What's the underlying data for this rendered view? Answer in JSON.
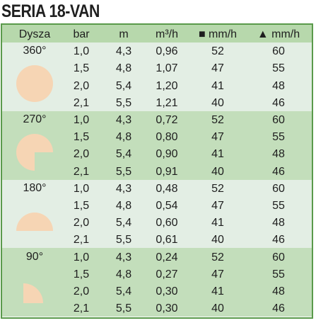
{
  "header": {
    "title": "SERIA 18-VAN"
  },
  "table": {
    "columns": [
      "Dysza",
      "bar",
      "m",
      "m³/h",
      "■ mm/h",
      "▲ mm/h"
    ],
    "groups": [
      {
        "nozzle": "360°",
        "rows": [
          [
            "1,0",
            "4,3",
            "0,96",
            "52",
            "60"
          ],
          [
            "1,5",
            "4,8",
            "1,07",
            "47",
            "55"
          ],
          [
            "2,0",
            "5,4",
            "1,20",
            "41",
            "48"
          ],
          [
            "2,1",
            "5,5",
            "1,21",
            "40",
            "46"
          ]
        ]
      },
      {
        "nozzle": "270°",
        "rows": [
          [
            "1,0",
            "4,3",
            "0,72",
            "52",
            "60"
          ],
          [
            "1,5",
            "4,8",
            "0,80",
            "47",
            "55"
          ],
          [
            "2,0",
            "5,4",
            "0,90",
            "41",
            "48"
          ],
          [
            "2,1",
            "5,5",
            "0,91",
            "40",
            "46"
          ]
        ]
      },
      {
        "nozzle": "180°",
        "rows": [
          [
            "1,0",
            "4,3",
            "0,48",
            "52",
            "60"
          ],
          [
            "1,5",
            "4,8",
            "0,54",
            "47",
            "55"
          ],
          [
            "2,0",
            "5,4",
            "0,60",
            "41",
            "48"
          ],
          [
            "2,1",
            "5,5",
            "0,61",
            "40",
            "46"
          ]
        ]
      },
      {
        "nozzle": "90°",
        "rows": [
          [
            "1,0",
            "4,3",
            "0,24",
            "52",
            "60"
          ],
          [
            "1,5",
            "4,8",
            "0,27",
            "47",
            "55"
          ],
          [
            "2,0",
            "5,4",
            "0,30",
            "41",
            "48"
          ],
          [
            "2,1",
            "5,5",
            "0,30",
            "40",
            "46"
          ]
        ]
      }
    ]
  }
}
